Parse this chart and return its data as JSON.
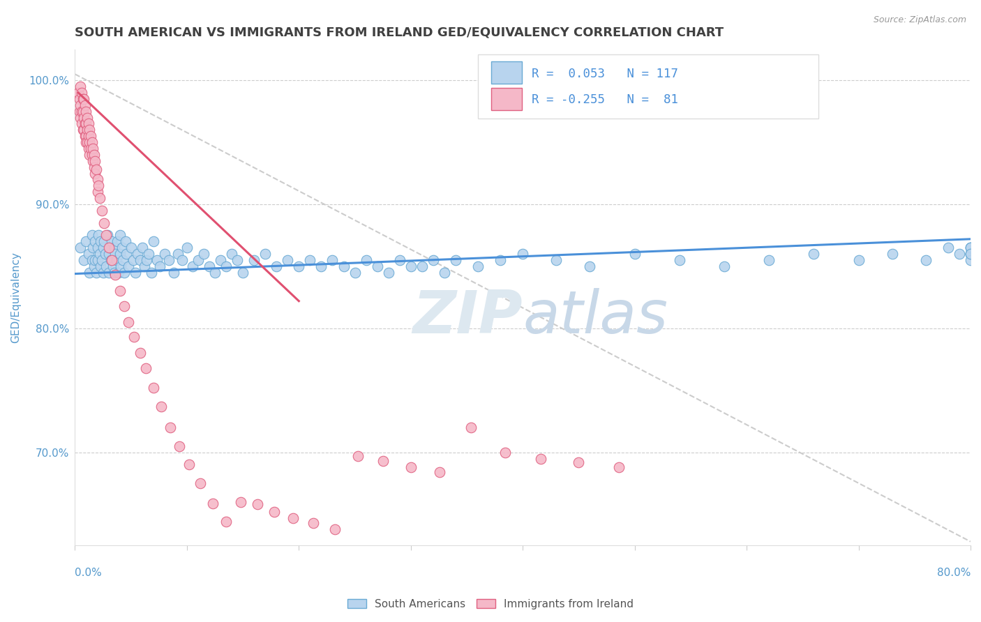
{
  "title": "SOUTH AMERICAN VS IMMIGRANTS FROM IRELAND GED/EQUIVALENCY CORRELATION CHART",
  "source": "Source: ZipAtlas.com",
  "ylabel": "GED/Equivalency",
  "legend_blue_label": "South Americans",
  "legend_pink_label": "Immigrants from Ireland",
  "r_blue": 0.053,
  "n_blue": 117,
  "r_pink": -0.255,
  "n_pink": 81,
  "blue_color": "#b8d4ee",
  "pink_color": "#f5b8c8",
  "blue_edge_color": "#6aaad4",
  "pink_edge_color": "#e06080",
  "blue_line_color": "#4a90d9",
  "pink_line_color": "#e05070",
  "title_color": "#404040",
  "axis_label_color": "#5599cc",
  "watermark_color": "#dde8f0",
  "background_color": "#ffffff",
  "xmin": 0.0,
  "xmax": 0.8,
  "ymin": 0.625,
  "ymax": 1.025,
  "blue_scatter_x": [
    0.005,
    0.008,
    0.01,
    0.012,
    0.013,
    0.015,
    0.015,
    0.016,
    0.017,
    0.018,
    0.018,
    0.019,
    0.02,
    0.02,
    0.021,
    0.022,
    0.023,
    0.023,
    0.024,
    0.025,
    0.025,
    0.026,
    0.027,
    0.028,
    0.029,
    0.03,
    0.03,
    0.031,
    0.032,
    0.033,
    0.034,
    0.035,
    0.035,
    0.036,
    0.037,
    0.038,
    0.039,
    0.04,
    0.04,
    0.041,
    0.042,
    0.043,
    0.044,
    0.045,
    0.046,
    0.048,
    0.05,
    0.052,
    0.054,
    0.056,
    0.058,
    0.06,
    0.062,
    0.064,
    0.066,
    0.068,
    0.07,
    0.073,
    0.076,
    0.08,
    0.084,
    0.088,
    0.092,
    0.096,
    0.1,
    0.105,
    0.11,
    0.115,
    0.12,
    0.125,
    0.13,
    0.135,
    0.14,
    0.145,
    0.15,
    0.16,
    0.17,
    0.18,
    0.19,
    0.2,
    0.21,
    0.22,
    0.23,
    0.24,
    0.25,
    0.26,
    0.27,
    0.28,
    0.29,
    0.3,
    0.31,
    0.32,
    0.33,
    0.34,
    0.36,
    0.38,
    0.4,
    0.43,
    0.46,
    0.5,
    0.54,
    0.58,
    0.62,
    0.66,
    0.7,
    0.73,
    0.76,
    0.78,
    0.79,
    0.8,
    0.8,
    0.8,
    0.8,
    0.8,
    0.8,
    0.8,
    0.8
  ],
  "blue_scatter_y": [
    0.865,
    0.855,
    0.87,
    0.86,
    0.845,
    0.875,
    0.855,
    0.865,
    0.85,
    0.87,
    0.855,
    0.845,
    0.865,
    0.855,
    0.875,
    0.86,
    0.85,
    0.87,
    0.855,
    0.865,
    0.845,
    0.87,
    0.86,
    0.85,
    0.875,
    0.86,
    0.845,
    0.865,
    0.855,
    0.87,
    0.85,
    0.865,
    0.845,
    0.86,
    0.855,
    0.87,
    0.845,
    0.86,
    0.875,
    0.85,
    0.865,
    0.855,
    0.845,
    0.87,
    0.86,
    0.85,
    0.865,
    0.855,
    0.845,
    0.86,
    0.855,
    0.865,
    0.85,
    0.855,
    0.86,
    0.845,
    0.87,
    0.855,
    0.85,
    0.86,
    0.855,
    0.845,
    0.86,
    0.855,
    0.865,
    0.85,
    0.855,
    0.86,
    0.85,
    0.845,
    0.855,
    0.85,
    0.86,
    0.855,
    0.845,
    0.855,
    0.86,
    0.85,
    0.855,
    0.85,
    0.855,
    0.85,
    0.855,
    0.85,
    0.845,
    0.855,
    0.85,
    0.845,
    0.855,
    0.85,
    0.85,
    0.855,
    0.845,
    0.855,
    0.85,
    0.855,
    0.86,
    0.855,
    0.85,
    0.86,
    0.855,
    0.85,
    0.855,
    0.86,
    0.855,
    0.86,
    0.855,
    0.865,
    0.86,
    0.865,
    0.86,
    0.86,
    0.865,
    0.86,
    0.855,
    0.865,
    0.86
  ],
  "pink_scatter_x": [
    0.003,
    0.004,
    0.004,
    0.005,
    0.005,
    0.005,
    0.006,
    0.006,
    0.006,
    0.007,
    0.007,
    0.007,
    0.008,
    0.008,
    0.008,
    0.009,
    0.009,
    0.009,
    0.01,
    0.01,
    0.01,
    0.01,
    0.011,
    0.011,
    0.011,
    0.012,
    0.012,
    0.012,
    0.013,
    0.013,
    0.013,
    0.014,
    0.014,
    0.015,
    0.015,
    0.016,
    0.016,
    0.017,
    0.017,
    0.018,
    0.018,
    0.019,
    0.02,
    0.02,
    0.021,
    0.022,
    0.024,
    0.026,
    0.028,
    0.03,
    0.033,
    0.036,
    0.04,
    0.044,
    0.048,
    0.053,
    0.058,
    0.063,
    0.07,
    0.077,
    0.085,
    0.093,
    0.102,
    0.112,
    0.123,
    0.135,
    0.148,
    0.163,
    0.178,
    0.195,
    0.213,
    0.232,
    0.253,
    0.275,
    0.3,
    0.326,
    0.354,
    0.384,
    0.416,
    0.45,
    0.486
  ],
  "pink_scatter_y": [
    0.99,
    0.985,
    0.975,
    0.995,
    0.98,
    0.97,
    0.99,
    0.975,
    0.965,
    0.985,
    0.975,
    0.96,
    0.985,
    0.97,
    0.96,
    0.98,
    0.965,
    0.955,
    0.975,
    0.965,
    0.955,
    0.95,
    0.97,
    0.96,
    0.95,
    0.965,
    0.955,
    0.945,
    0.96,
    0.95,
    0.94,
    0.955,
    0.945,
    0.95,
    0.94,
    0.945,
    0.935,
    0.94,
    0.93,
    0.935,
    0.925,
    0.928,
    0.92,
    0.91,
    0.915,
    0.905,
    0.895,
    0.885,
    0.875,
    0.865,
    0.855,
    0.843,
    0.83,
    0.818,
    0.805,
    0.793,
    0.78,
    0.768,
    0.752,
    0.737,
    0.72,
    0.705,
    0.69,
    0.675,
    0.659,
    0.644,
    0.66,
    0.658,
    0.652,
    0.647,
    0.643,
    0.638,
    0.697,
    0.693,
    0.688,
    0.684,
    0.72,
    0.7,
    0.695,
    0.692,
    0.688
  ],
  "blue_trend_x": [
    0.0,
    0.8
  ],
  "blue_trend_y": [
    0.844,
    0.872
  ],
  "pink_trend_x": [
    0.003,
    0.2
  ],
  "pink_trend_y": [
    0.99,
    0.822
  ],
  "ref_line_x": [
    0.0,
    0.8
  ],
  "ref_line_y": [
    1.005,
    0.628
  ]
}
